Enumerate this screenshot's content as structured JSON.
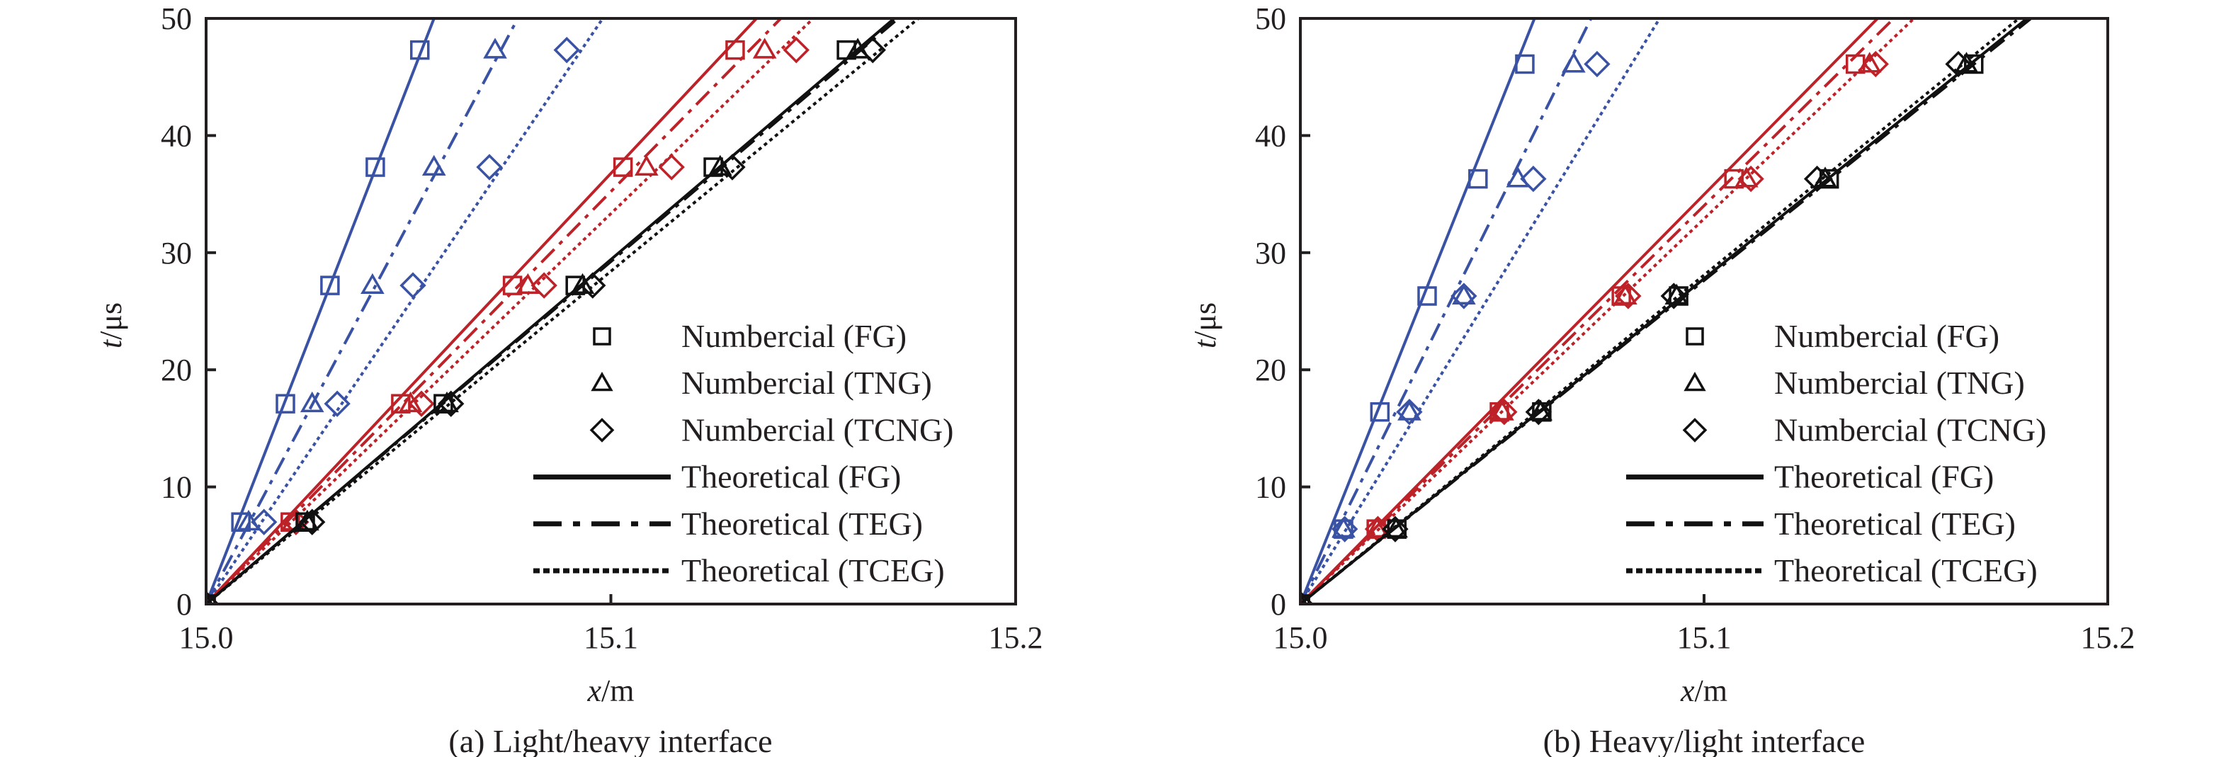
{
  "colors": {
    "FG_family": "#3a52a4",
    "TEG_family": "#be2229",
    "TCEG_family": "#111111",
    "axis": "#231f20"
  },
  "chart_data": [
    {
      "type": "line",
      "panel": "a",
      "caption": "(a) Light/heavy interface",
      "xlabel_var": "x",
      "xlabel_unit": "/m",
      "ylabel_var": "t",
      "ylabel_unit": "/μs",
      "xlim": [
        15.0,
        15.2
      ],
      "ylim": [
        0,
        50
      ],
      "xticks": [
        "15.0",
        "15.1",
        "15.2"
      ],
      "xtick_values": [
        15.0,
        15.1,
        15.2
      ],
      "yticks": [
        "0",
        "10",
        "20",
        "30",
        "40",
        "50"
      ],
      "ytick_values": [
        0,
        10,
        20,
        30,
        40,
        50
      ],
      "grid": false,
      "legend_position": "bottom-right",
      "legend": [
        {
          "label": "Numbercial (FG)",
          "kind": "marker",
          "marker": "square"
        },
        {
          "label": "Numbercial (TNG)",
          "kind": "marker",
          "marker": "triangle"
        },
        {
          "label": "Numbercial (TCNG)",
          "kind": "marker",
          "marker": "diamond"
        },
        {
          "label": "Theoretical (FG)",
          "kind": "line",
          "style": "solid"
        },
        {
          "label": "Theoretical (TEG)",
          "kind": "line",
          "style": "dashdot"
        },
        {
          "label": "Theoretical (TCEG)",
          "kind": "line",
          "style": "dotted"
        }
      ],
      "groups": [
        {
          "color_key": "FG_family",
          "lines": [
            {
              "name": "Theoretical (FG)",
              "style": "solid",
              "x": [
                15.0,
                15.0563
              ],
              "t": [
                0,
                50
              ]
            },
            {
              "name": "Theoretical (TEG)",
              "style": "dashdot",
              "x": [
                15.0,
                15.077
              ],
              "t": [
                0,
                50
              ]
            },
            {
              "name": "Theoretical (TCEG)",
              "style": "dotted",
              "x": [
                15.0,
                15.098
              ],
              "t": [
                0,
                50
              ]
            }
          ],
          "markers": [
            {
              "name": "Numbercial (FG)",
              "marker": "square",
              "x": [
                15.0,
                15.0086,
                15.0196,
                15.0306,
                15.0418,
                15.0528
              ],
              "t": [
                0,
                7.0,
                17.1,
                27.2,
                37.3,
                47.3
              ]
            },
            {
              "name": "Numbercial (TNG)",
              "marker": "triangle",
              "x": [
                15.0,
                15.0105,
                15.0262,
                15.0411,
                15.0563,
                15.0714
              ],
              "t": [
                0,
                7.0,
                17.1,
                27.2,
                37.3,
                47.3
              ]
            },
            {
              "name": "Numbercial (TCNG)",
              "marker": "diamond",
              "x": [
                15.0,
                15.0143,
                15.0324,
                15.0511,
                15.07,
                15.0891
              ],
              "t": [
                0,
                7.0,
                17.1,
                27.2,
                37.3,
                47.3
              ]
            }
          ]
        },
        {
          "color_key": "TEG_family",
          "lines": [
            {
              "name": "Theoretical (FG)",
              "style": "solid",
              "x": [
                15.0,
                15.136
              ],
              "t": [
                0,
                50
              ]
            },
            {
              "name": "Theoretical (TEG)",
              "style": "dashdot",
              "x": [
                15.0,
                15.142
              ],
              "t": [
                0,
                50
              ]
            },
            {
              "name": "Theoretical (TCEG)",
              "style": "dotted",
              "x": [
                15.0,
                15.15
              ],
              "t": [
                0,
                50
              ]
            }
          ],
          "markers": [
            {
              "name": "Numbercial (FG)",
              "marker": "square",
              "x": [
                15.0,
                15.0208,
                15.0481,
                15.0757,
                15.103,
                15.1307
              ],
              "t": [
                0,
                7.0,
                17.1,
                27.2,
                37.3,
                47.3
              ]
            },
            {
              "name": "Numbercial (TNG)",
              "marker": "triangle",
              "x": [
                15.0,
                15.0215,
                15.0505,
                15.0795,
                15.1088,
                15.138
              ],
              "t": [
                0,
                7.0,
                17.1,
                27.2,
                37.3,
                47.3
              ]
            },
            {
              "name": "Numbercial (TCNG)",
              "marker": "diamond",
              "x": [
                15.0,
                15.0222,
                15.0532,
                15.0835,
                15.115,
                15.1458
              ],
              "t": [
                0,
                7.0,
                17.1,
                27.2,
                37.3,
                47.3
              ]
            }
          ]
        },
        {
          "color_key": "TCEG_family",
          "lines": [
            {
              "name": "Theoretical (FG)",
              "style": "solid",
              "x": [
                15.0,
                15.17
              ],
              "t": [
                0,
                50
              ]
            },
            {
              "name": "Theoretical (TEG)",
              "style": "dashdot",
              "x": [
                15.0,
                15.171
              ],
              "t": [
                0,
                50
              ]
            },
            {
              "name": "Theoretical (TCEG)",
              "style": "dotted",
              "x": [
                15.0,
                15.176
              ],
              "t": [
                0,
                50
              ]
            }
          ],
          "markers": [
            {
              "name": "Numbercial (FG)",
              "marker": "square",
              "x": [
                15.0,
                15.0245,
                15.0586,
                15.0912,
                15.1253,
                15.1582
              ],
              "t": [
                0,
                7.0,
                17.1,
                27.2,
                37.3,
                47.3
              ]
            },
            {
              "name": "Numbercial (TNG)",
              "marker": "triangle",
              "x": [
                15.0,
                15.025,
                15.0595,
                15.093,
                15.127,
                15.161
              ],
              "t": [
                0,
                7.0,
                17.1,
                27.2,
                37.3,
                47.3
              ]
            },
            {
              "name": "Numbercial (TCNG)",
              "marker": "diamond",
              "x": [
                15.0,
                15.0262,
                15.0605,
                15.0955,
                15.13,
                15.1647
              ],
              "t": [
                0,
                7.0,
                17.1,
                27.2,
                37.3,
                47.3
              ]
            }
          ]
        }
      ]
    },
    {
      "type": "line",
      "panel": "b",
      "caption": "(b) Heavy/light interface",
      "xlabel_var": "x",
      "xlabel_unit": "/m",
      "ylabel_var": "t",
      "ylabel_unit": "/μs",
      "xlim": [
        15.0,
        15.2
      ],
      "ylim": [
        0,
        50
      ],
      "xticks": [
        "15.0",
        "15.1",
        "15.2"
      ],
      "xtick_values": [
        15.0,
        15.1,
        15.2
      ],
      "yticks": [
        "0",
        "10",
        "20",
        "30",
        "40",
        "50"
      ],
      "ytick_values": [
        0,
        10,
        20,
        30,
        40,
        50
      ],
      "grid": false,
      "legend_position": "bottom-right",
      "legend": [
        {
          "label": "Numbercial (FG)",
          "kind": "marker",
          "marker": "square"
        },
        {
          "label": "Numbercial (TNG)",
          "kind": "marker",
          "marker": "triangle"
        },
        {
          "label": "Numbercial (TCNG)",
          "kind": "marker",
          "marker": "diamond"
        },
        {
          "label": "Theoretical (FG)",
          "kind": "line",
          "style": "solid"
        },
        {
          "label": "Theoretical (TEG)",
          "kind": "line",
          "style": "dashdot"
        },
        {
          "label": "Theoretical (TCEG)",
          "kind": "line",
          "style": "dotted"
        }
      ],
      "groups": [
        {
          "color_key": "FG_family",
          "lines": [
            {
              "name": "Theoretical (FG)",
              "style": "solid",
              "x": [
                15.0,
                15.058
              ],
              "t": [
                0,
                50
              ]
            },
            {
              "name": "Theoretical (TEG)",
              "style": "dashdot",
              "x": [
                15.0,
                15.072
              ],
              "t": [
                0,
                50
              ]
            },
            {
              "name": "Theoretical (TCEG)",
              "style": "dotted",
              "x": [
                15.0,
                15.089
              ],
              "t": [
                0,
                50
              ]
            }
          ],
          "markers": [
            {
              "name": "Numbercial (FG)",
              "marker": "square",
              "x": [
                15.0,
                15.0107,
                15.0197,
                15.0314,
                15.044,
                15.0556
              ],
              "t": [
                0,
                6.4,
                16.4,
                26.3,
                36.3,
                46.1
              ]
            },
            {
              "name": "Numbercial (TNG)",
              "marker": "triangle",
              "x": [
                15.0,
                15.0107,
                15.027,
                15.0405,
                15.0539,
                15.0677
              ],
              "t": [
                0,
                6.4,
                16.4,
                26.3,
                36.3,
                46.1
              ]
            },
            {
              "name": "Numbercial (TCNG)",
              "marker": "diamond",
              "x": [
                15.0,
                15.011,
                15.027,
                15.0405,
                15.0577,
                15.0735
              ],
              "t": [
                0,
                6.4,
                16.4,
                26.3,
                36.3,
                46.1
              ]
            }
          ]
        },
        {
          "color_key": "TEG_family",
          "lines": [
            {
              "name": "Theoretical (FG)",
              "style": "solid",
              "x": [
                15.0,
                15.143
              ],
              "t": [
                0,
                50
              ]
            },
            {
              "name": "Theoretical (TEG)",
              "style": "dashdot",
              "x": [
                15.0,
                15.147
              ],
              "t": [
                0,
                50
              ]
            },
            {
              "name": "Theoretical (TCEG)",
              "style": "dotted",
              "x": [
                15.0,
                15.152
              ],
              "t": [
                0,
                50
              ]
            }
          ],
          "markers": [
            {
              "name": "Numbercial (FG)",
              "marker": "square",
              "x": [
                15.0,
                15.0188,
                15.0493,
                15.0795,
                15.1074,
                15.1375
              ],
              "t": [
                0,
                6.4,
                16.4,
                26.3,
                36.3,
                46.1
              ]
            },
            {
              "name": "Numbercial (TNG)",
              "marker": "triangle",
              "x": [
                15.0,
                15.019,
                15.05,
                15.0805,
                15.1105,
                15.141
              ],
              "t": [
                0,
                6.4,
                16.4,
                26.3,
                36.3,
                46.1
              ]
            },
            {
              "name": "Numbercial (TCNG)",
              "marker": "diamond",
              "x": [
                15.0,
                15.0192,
                15.0505,
                15.0812,
                15.1116,
                15.1425
              ],
              "t": [
                0,
                6.4,
                16.4,
                26.3,
                36.3,
                46.1
              ]
            }
          ]
        },
        {
          "color_key": "TCEG_family",
          "lines": [
            {
              "name": "Theoretical (FG)",
              "style": "solid",
              "x": [
                15.0,
                15.18
              ],
              "t": [
                0,
                50
              ]
            },
            {
              "name": "Theoretical (TEG)",
              "style": "dashdot",
              "x": [
                15.0,
                15.181
              ],
              "t": [
                0,
                50
              ]
            },
            {
              "name": "Theoretical (TCEG)",
              "style": "dotted",
              "x": [
                15.0,
                15.178
              ],
              "t": [
                0,
                50
              ]
            }
          ],
          "markers": [
            {
              "name": "Numbercial (FG)",
              "marker": "square",
              "x": [
                15.0,
                15.0239,
                15.0598,
                15.0937,
                15.131,
                15.1668
              ],
              "t": [
                0,
                6.4,
                16.4,
                26.3,
                36.3,
                46.1
              ]
            },
            {
              "name": "Numbercial (TNG)",
              "marker": "triangle",
              "x": [
                15.0,
                15.0237,
                15.0595,
                15.0932,
                15.13,
                15.165
              ],
              "t": [
                0,
                6.4,
                16.4,
                26.3,
                36.3,
                46.1
              ]
            },
            {
              "name": "Numbercial (TCNG)",
              "marker": "diamond",
              "x": [
                15.0,
                15.0235,
                15.059,
                15.0925,
                15.128,
                15.163
              ],
              "t": [
                0,
                6.4,
                16.4,
                26.3,
                36.3,
                46.1
              ]
            }
          ]
        }
      ]
    }
  ]
}
